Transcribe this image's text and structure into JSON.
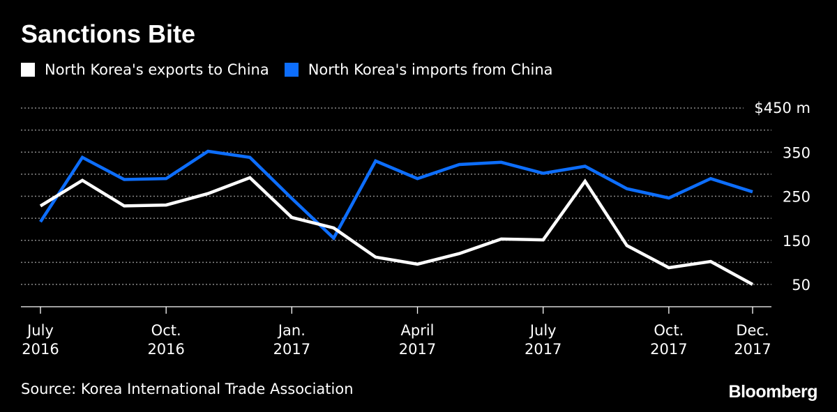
{
  "chart_data": {
    "type": "line",
    "title": "Sanctions Bite",
    "unit_label": "$450 m",
    "x": [
      "July 2016",
      "Aug. 2016",
      "Sept. 2016",
      "Oct. 2016",
      "Nov. 2016",
      "Dec. 2016",
      "Jan. 2017",
      "Feb. 2017",
      "March 2017",
      "April 2017",
      "May 2017",
      "June 2017",
      "July 2017",
      "Aug. 2017",
      "Sept. 2017",
      "Oct. 2017",
      "Nov. 2017",
      "Dec. 2017"
    ],
    "x_ticks": [
      {
        "index": 0,
        "line1": "July",
        "line2": "2016"
      },
      {
        "index": 3,
        "line1": "Oct.",
        "line2": "2016"
      },
      {
        "index": 6,
        "line1": "Jan.",
        "line2": "2017"
      },
      {
        "index": 9,
        "line1": "April",
        "line2": "2017"
      },
      {
        "index": 12,
        "line1": "July",
        "line2": "2017"
      },
      {
        "index": 15,
        "line1": "Oct.",
        "line2": "2017"
      },
      {
        "index": 17,
        "line1": "Dec.",
        "line2": "2017"
      }
    ],
    "y_ticks": [
      {
        "value": 50,
        "label": "50"
      },
      {
        "value": 150,
        "label": "150"
      },
      {
        "value": 250,
        "label": "250"
      },
      {
        "value": 350,
        "label": "350"
      }
    ],
    "gridlines": [
      50,
      100,
      150,
      200,
      250,
      300,
      350,
      400,
      450
    ],
    "ylim": [
      0,
      450
    ],
    "series": [
      {
        "name": "North Korea's exports to China",
        "color": "#ffffff",
        "values": [
          228,
          286,
          228,
          230,
          256,
          292,
          202,
          178,
          112,
          96,
          120,
          153,
          151,
          284,
          138,
          88,
          102,
          50
        ]
      },
      {
        "name": "North Korea's imports from China",
        "color": "#0d6efd",
        "values": [
          192,
          338,
          288,
          290,
          352,
          338,
          245,
          155,
          330,
          290,
          322,
          327,
          302,
          318,
          267,
          246,
          290,
          260
        ]
      }
    ]
  },
  "source": "Source: Korea International Trade Association",
  "brand": "Bloomberg"
}
